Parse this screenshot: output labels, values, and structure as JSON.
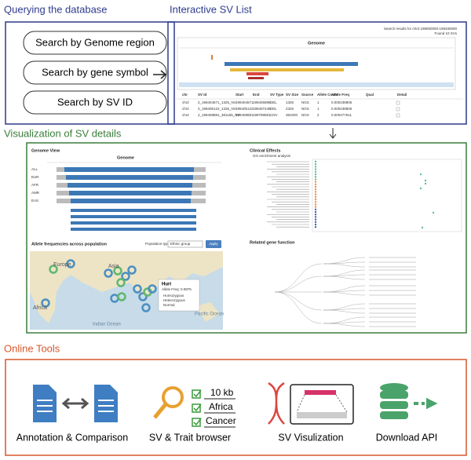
{
  "query": {
    "title": "Querying the database",
    "buttons": [
      "Search by Genome region",
      "Search by gene symbol",
      "Search by SV ID"
    ]
  },
  "sv_list": {
    "title": "Interactive SV List",
    "search_info": "Search results for chr2:199000000-199330000",
    "found": "Found 10 SVs",
    "track_title": "Genome",
    "table": {
      "headers": [
        "chr",
        "SV Id",
        "Start",
        "End",
        "SV Type",
        "SV Size",
        "Source",
        "Allele Count",
        "Allele Freq",
        "Qual",
        "Detail"
      ],
      "rows": [
        [
          "chr2",
          "2_199404571_1325_NV",
          "199404571",
          "199405896",
          "DEL",
          "1326",
          "NGS",
          "1",
          "0.000238805"
        ],
        [
          "chr2",
          "2_199405122_1326_NV",
          "199405122",
          "199407448",
          "DEL",
          "2326",
          "NGS",
          "1",
          "0.000238805"
        ],
        [
          "chr2",
          "2_199408881_381165_NV",
          "199408881",
          "199789881",
          "CNV",
          "381000",
          "NGS",
          "2",
          "0.000477611"
        ]
      ]
    }
  },
  "details": {
    "title": "Visualization of SV details",
    "genome_view": {
      "title": "Genome View",
      "track_title": "Genome",
      "rows": [
        "ALL",
        "EUR",
        "AFR",
        "AMR",
        "EAS"
      ]
    },
    "clinical": {
      "title": "Clinical Effects",
      "subtitle": "GO enrichment analysis"
    },
    "allele": {
      "title": "Allele frequencies across population",
      "population_type": "Population type:",
      "select": "Ethnic group",
      "apply": "Apply",
      "map_labels": [
        "Europe",
        "Asia",
        "Africa",
        "Indian Ocean",
        "Pacific Ocean"
      ],
      "popup": {
        "name": "Huri",
        "freq": "Allele Freq: 0.0875",
        "rows": [
          "Homozygous",
          "Heterozygous",
          "Normal"
        ]
      }
    },
    "related": {
      "title": "Related gene function"
    }
  },
  "tools": {
    "title": "Online Tools",
    "items": [
      "Annotation & Comparison",
      "SV & Trait browser",
      "SV Visulization",
      "Download API"
    ],
    "browser_terms": [
      "10 kb",
      "Africa",
      "Cancer"
    ]
  }
}
